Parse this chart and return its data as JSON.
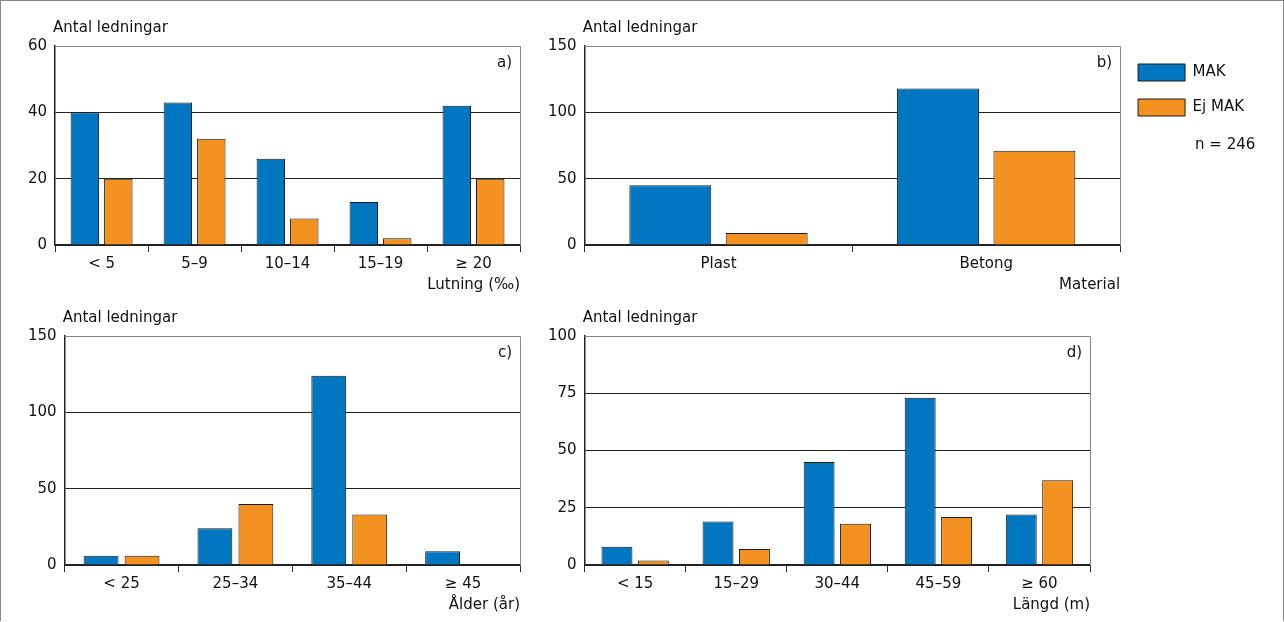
{
  "chart_data": [
    {
      "type": "bar",
      "categories": [
        "< 5",
        "5–9",
        "10–14",
        "15–19",
        "≥ 20"
      ],
      "xlabel": "Lutning (‰)",
      "ylabel": "Antal ledningar",
      "annotations": [
        "a)"
      ],
      "series": [
        {
          "color": "#0077c0",
          "values": [
            40,
            43,
            26,
            13,
            42
          ]
        },
        {
          "color": "#f39220",
          "values": [
            20,
            32,
            8,
            2,
            20
          ]
        }
      ],
      "ylim": [
        0,
        60
      ],
      "yticks": [
        0,
        20,
        40,
        60
      ],
      "grid": "y",
      "legend": false
    },
    {
      "type": "bar",
      "categories": [
        "Plast",
        "Betong"
      ],
      "xlabel": "Material",
      "ylabel": "Antal ledningar",
      "annotations": [
        "b)",
        "n = 246"
      ],
      "series": [
        {
          "name": "MAK",
          "color": "#0077c0",
          "values": [
            45,
            118
          ]
        },
        {
          "name": "Ej MAK",
          "color": "#f39220",
          "values": [
            9,
            71
          ]
        }
      ],
      "ylim": [
        0,
        150
      ],
      "yticks": [
        0,
        50,
        100,
        150
      ],
      "grid": "y",
      "legend": "right"
    },
    {
      "type": "bar",
      "categories": [
        "< 25",
        "25–34",
        "35–44",
        "≥ 45"
      ],
      "xlabel": "Ålder (år)",
      "ylabel": "Antal ledningar",
      "annotations": [
        "c)"
      ],
      "series": [
        {
          "color": "#0077c0",
          "values": [
            6,
            24,
            124,
            9
          ]
        },
        {
          "color": "#f39220",
          "values": [
            6,
            40,
            33,
            0
          ]
        }
      ],
      "ylim": [
        0,
        150
      ],
      "yticks": [
        0,
        50,
        100,
        150
      ],
      "grid": "y",
      "legend": false
    },
    {
      "type": "bar",
      "categories": [
        "< 15",
        "15–29",
        "30–44",
        "45–59",
        "≥ 60"
      ],
      "xlabel": "Längd (m)",
      "ylabel": "Antal ledningar",
      "annotations": [
        "d)"
      ],
      "series": [
        {
          "color": "#0077c0",
          "values": [
            8,
            19,
            45,
            73,
            22
          ]
        },
        {
          "color": "#f39220",
          "values": [
            2,
            7,
            18,
            21,
            37
          ]
        }
      ],
      "ylim": [
        0,
        100
      ],
      "yticks": [
        0,
        25,
        50,
        75,
        100
      ],
      "grid": "y",
      "legend": false
    }
  ]
}
